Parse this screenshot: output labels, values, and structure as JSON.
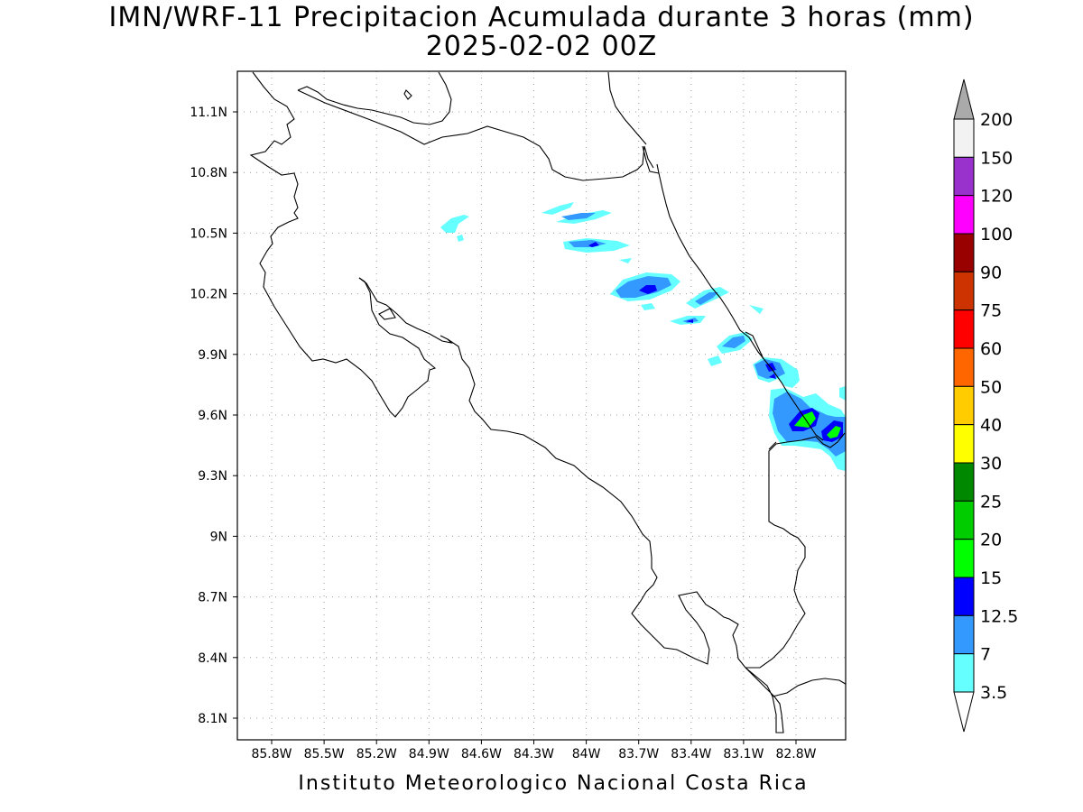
{
  "title": {
    "line1": "IMN/WRF-11 Precipitacion Acumulada durante 3 horas (mm)",
    "line2": "2025-02-02 00Z"
  },
  "footer": "Instituto Meteorologico Nacional Costa Rica",
  "map": {
    "lat_labels": [
      "11.1N",
      "10.8N",
      "10.5N",
      "10.2N",
      "9.9N",
      "9.6N",
      "9.3N",
      "9N",
      "8.7N",
      "8.4N",
      "8.1N"
    ],
    "lon_labels": [
      "85.8W",
      "85.5W",
      "85.2W",
      "84.9W",
      "84.6W",
      "84.3W",
      "84W",
      "83.7W",
      "83.4W",
      "83.1W",
      "82.8W"
    ]
  },
  "legend": {
    "labels": [
      "200",
      "150",
      "120",
      "100",
      "90",
      "75",
      "60",
      "50",
      "40",
      "30",
      "25",
      "20",
      "15",
      "12.5",
      "7",
      "3.5"
    ],
    "colors": [
      "#f2f2f2",
      "#9932cc",
      "#ff00ff",
      "#990000",
      "#cc3300",
      "#ff0000",
      "#ff6600",
      "#ffcc00",
      "#ffff00",
      "#008800",
      "#00cc00",
      "#00ff00",
      "#0000ff",
      "#3399ff",
      "#66ffff"
    ],
    "over_color": "#aaaaaa",
    "under_color": "#ffffff"
  }
}
